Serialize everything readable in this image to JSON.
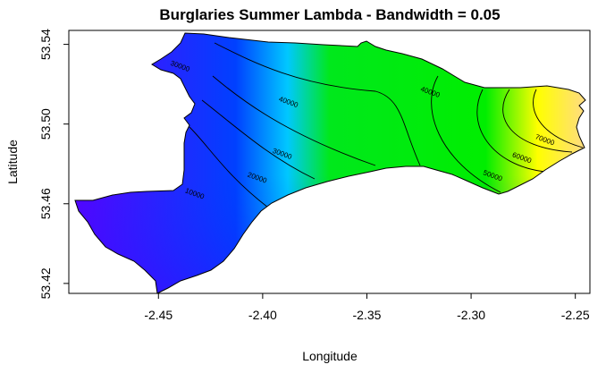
{
  "chart_data": {
    "type": "heatmap",
    "title": "Burglaries Summer Lambda - Bandwidth = 0.05",
    "xlabel": "Longitude",
    "ylabel": "Latitude",
    "xlim": [
      -2.493,
      -2.243
    ],
    "ylim": [
      53.415,
      53.547
    ],
    "x_ticks": [
      -2.45,
      -2.4,
      -2.35,
      -2.3,
      -2.25
    ],
    "x_tick_labels": [
      "-2.45",
      "-2.40",
      "-2.35",
      "-2.30",
      "-2.25"
    ],
    "y_ticks": [
      53.42,
      53.46,
      53.5,
      53.54
    ],
    "y_tick_labels": [
      "53.42",
      "53.46",
      "53.50",
      "53.54"
    ],
    "contour_levels": [
      10000,
      20000,
      30000,
      40000,
      50000,
      60000,
      70000
    ],
    "contour_labels": [
      {
        "text": "10000",
        "lon": -2.433,
        "lat": 53.464
      },
      {
        "text": "20000",
        "lon": -2.403,
        "lat": 53.472
      },
      {
        "text": "30000",
        "lon": -2.391,
        "lat": 53.484
      },
      {
        "text": "30000",
        "lon": -2.44,
        "lat": 53.528
      },
      {
        "text": "40000",
        "lon": -2.388,
        "lat": 53.51
      },
      {
        "text": "40000",
        "lon": -2.32,
        "lat": 53.515
      },
      {
        "text": "50000",
        "lon": -2.29,
        "lat": 53.473
      },
      {
        "text": "60000",
        "lon": -2.276,
        "lat": 53.482
      },
      {
        "text": "70000",
        "lon": -2.265,
        "lat": 53.491
      }
    ],
    "colors": {
      "low": "#5a00ff",
      "mid_low": "#0040ff",
      "mid": "#00e81c",
      "high": "#ffff00",
      "top": "#ffd890"
    },
    "legend": "none",
    "grid": false
  }
}
